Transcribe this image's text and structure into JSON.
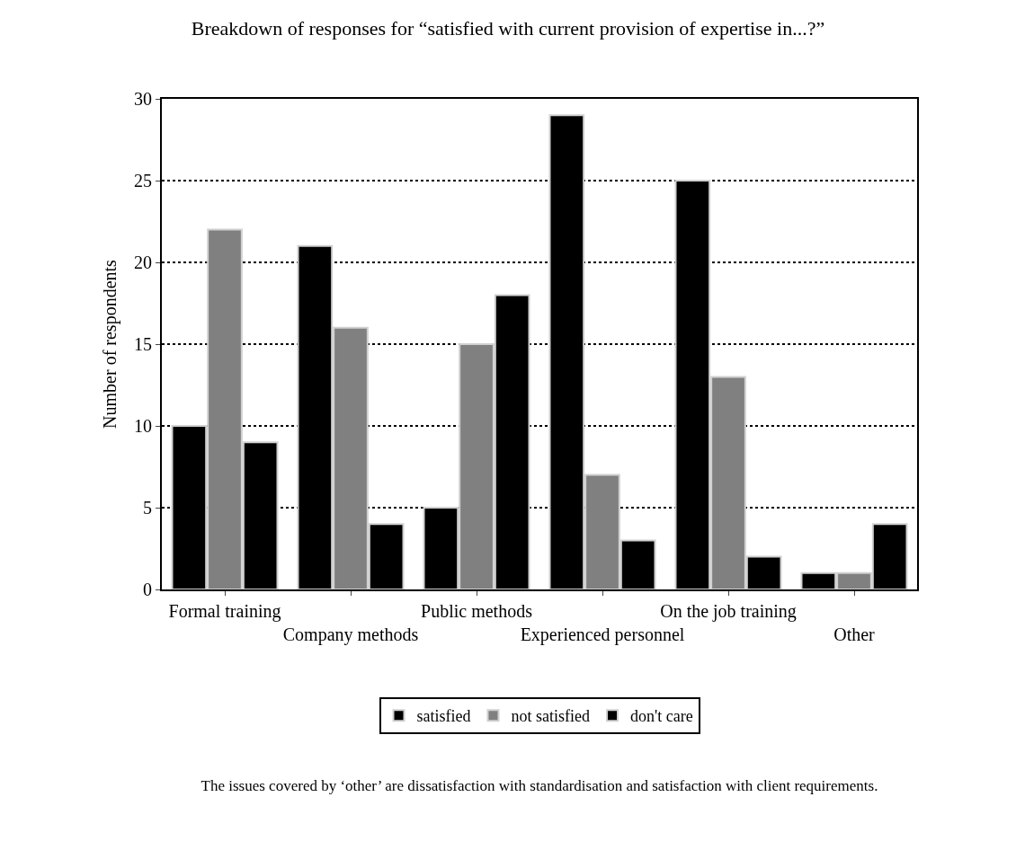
{
  "chart_data": {
    "type": "bar",
    "title": "Breakdown of responses for “satisfied with current provision of expertise in...?”",
    "ylabel": "Number of respondents",
    "categories": [
      "Formal training",
      "Company methods",
      "Public methods",
      "Experienced personnel",
      "On the job training",
      "Other"
    ],
    "series": [
      {
        "name": "satisfied",
        "color": "#000000",
        "values": [
          10,
          21,
          5,
          29,
          25,
          1
        ]
      },
      {
        "name": "not satisfied",
        "color": "#808080",
        "values": [
          22,
          16,
          15,
          7,
          13,
          1
        ]
      },
      {
        "name": "don't care",
        "color": "#000000",
        "values": [
          9,
          4,
          18,
          3,
          2,
          4
        ]
      }
    ],
    "ylim": [
      0,
      30
    ],
    "yticks": [
      0,
      5,
      10,
      15,
      20,
      25,
      30
    ],
    "grid": "y",
    "legend": "bottom",
    "annotations": [
      "The issues covered by ‘other’ are dissatisfaction with standardisation and satisfaction with client requirements."
    ]
  }
}
